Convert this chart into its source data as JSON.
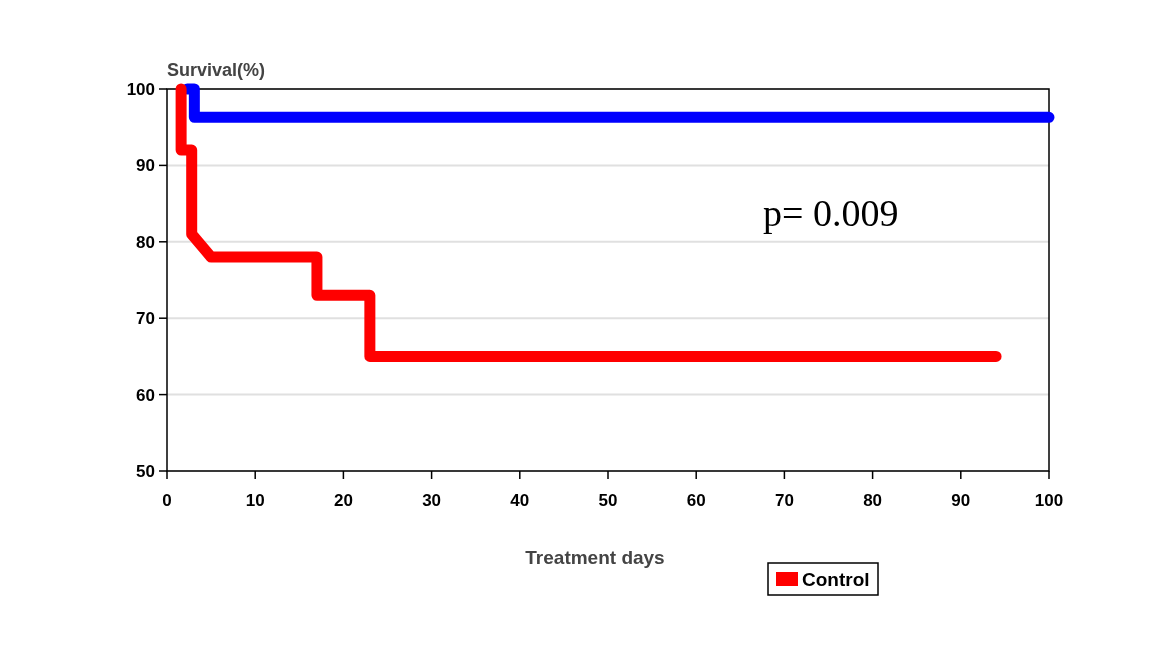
{
  "chart_data": {
    "type": "line",
    "ylabel": "Survival(%)",
    "xlabel": "Treatment days",
    "xlim": [
      0,
      100
    ],
    "xticks": [
      0,
      10,
      20,
      30,
      40,
      50,
      60,
      70,
      80,
      90,
      100
    ],
    "ylim": [
      50,
      100
    ],
    "yticks": [
      50,
      60,
      70,
      80,
      90,
      100
    ],
    "grid": "y",
    "legend": "bottom right",
    "marker": "none",
    "line_style": "solid",
    "annotations": [
      "p= 0.009"
    ],
    "series": [
      {
        "color": "#0000ff",
        "x": [
          2.3,
          3.1,
          3.1,
          100
        ],
        "values": [
          100,
          100,
          96.3,
          96.3
        ]
      },
      {
        "name": "Control",
        "color": "#ff0000",
        "x": [
          1.6,
          1.6,
          2.8,
          2.8,
          5,
          17,
          17,
          23,
          23,
          94
        ],
        "values": [
          100,
          92,
          92,
          81,
          78,
          78,
          73,
          73,
          65,
          65
        ]
      }
    ]
  }
}
